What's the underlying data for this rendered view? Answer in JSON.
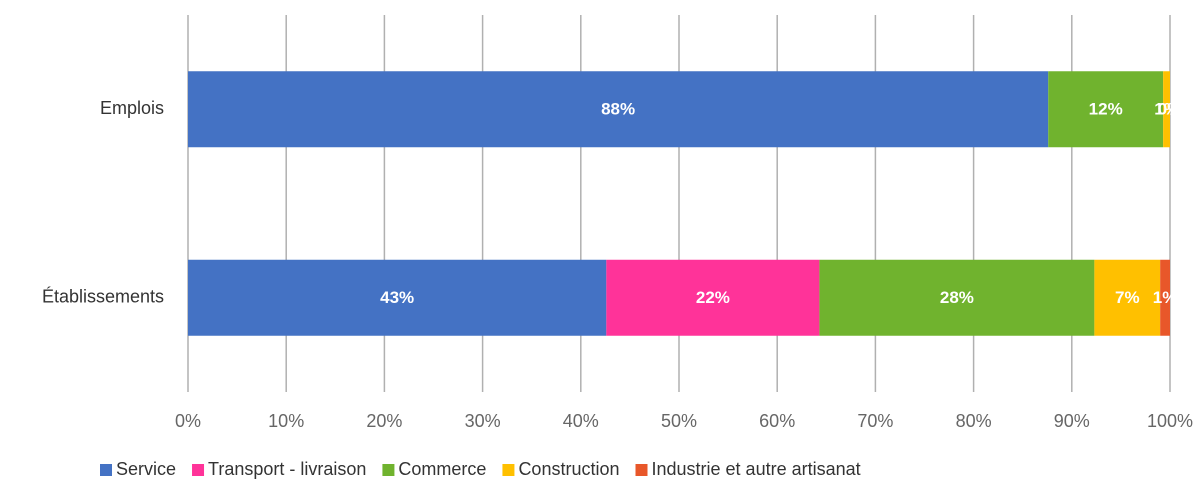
{
  "chart_data": {
    "type": "stacked-bar-horizontal",
    "categories": [
      "Emplois",
      "Établissements"
    ],
    "series": [
      {
        "name": "Service",
        "color": "#4472c4",
        "values": [
          87.6,
          42.6
        ],
        "value_labels": [
          "88%",
          "43%"
        ]
      },
      {
        "name": "Transport - livraison",
        "color": "#ff3399",
        "values": [
          0,
          21.7
        ],
        "value_labels": [
          null,
          "22%"
        ]
      },
      {
        "name": "Commerce",
        "color": "#70b32e",
        "values": [
          11.7,
          28.0
        ],
        "value_labels": [
          "12%",
          "28%"
        ]
      },
      {
        "name": "Construction",
        "color": "#ffc000",
        "values": [
          0.7,
          6.7
        ],
        "value_labels": [
          "1%",
          "7%"
        ]
      },
      {
        "name": "Industrie et autre artisanat",
        "color": "#e8572a",
        "values": [
          0,
          1.0
        ],
        "value_labels": [
          "0%",
          "1%"
        ]
      }
    ],
    "xlim": [
      0,
      100
    ],
    "xticks": [
      {
        "value": 0,
        "label": "0%"
      },
      {
        "value": 10,
        "label": "10%"
      },
      {
        "value": 20,
        "label": "20%"
      },
      {
        "value": 30,
        "label": "30%"
      },
      {
        "value": 40,
        "label": "40%"
      },
      {
        "value": 50,
        "label": "50%"
      },
      {
        "value": 60,
        "label": "60%"
      },
      {
        "value": 70,
        "label": "70%"
      },
      {
        "value": 80,
        "label": "80%"
      },
      {
        "value": 90,
        "label": "90%"
      },
      {
        "value": 100,
        "label": "100%"
      }
    ],
    "grid": true,
    "legend": "bottom"
  }
}
